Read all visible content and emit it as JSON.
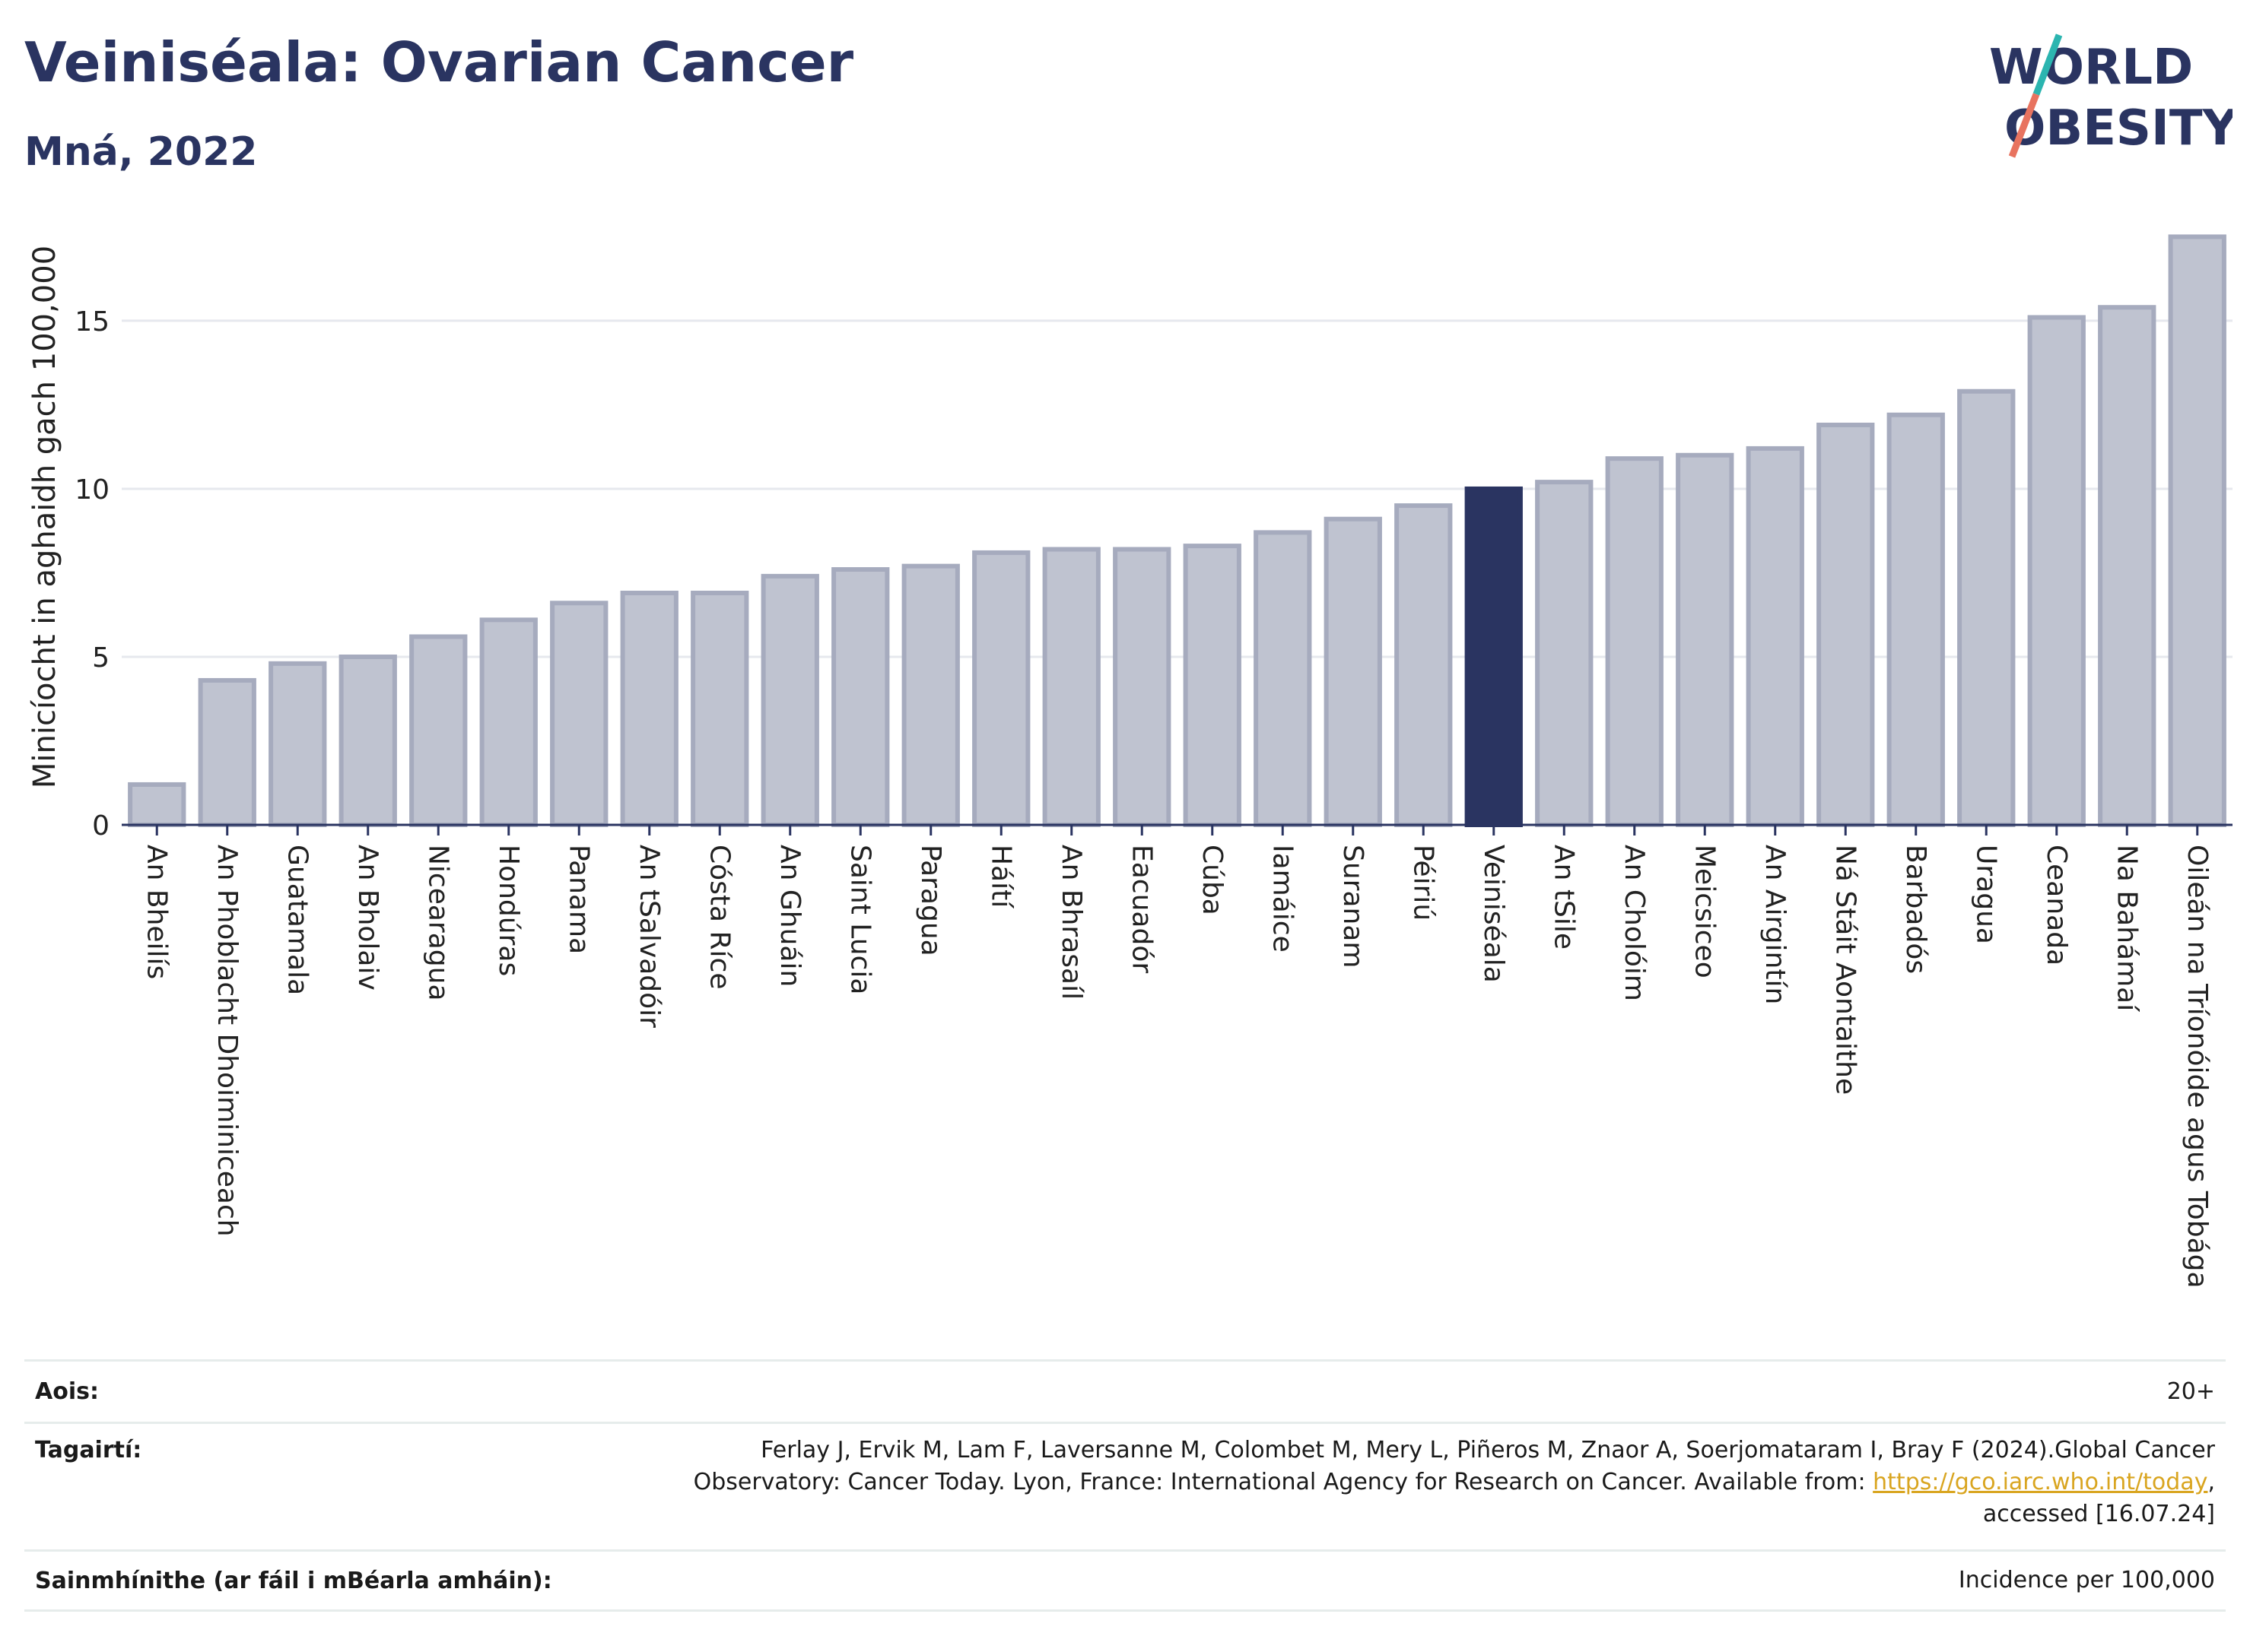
{
  "title": "Veiniséala: Ovarian Cancer",
  "subtitle": "Mná, 2022",
  "logo": {
    "line1": "WORLD",
    "line2": "OBESITY",
    "accent_colors": [
      "#2bb5b0",
      "#e8735f"
    ]
  },
  "colors": {
    "bar": "#bfc3d0",
    "bar_border": "#a6abbe",
    "highlight": "#2a3461",
    "grid": "#e6e8ee",
    "axis": "#2a3461"
  },
  "chart_data": {
    "type": "bar",
    "ylabel": "Minicíocht in aghaidh gach 100,000",
    "ylim": [
      0,
      17.6
    ],
    "yticks": [
      0,
      5,
      10,
      15
    ],
    "highlight": "Veiniséala",
    "categories": [
      "An Bheilís",
      "An Phoblacht Dhoiminiceach",
      "Guatamala",
      "An Bholaiv",
      "Nicearagua",
      "Hondúras",
      "Panama",
      "An tSalvadóir",
      "Cósta Ríce",
      "An Ghuáin",
      "Saint Lucia",
      "Paragua",
      "Háítí",
      "An Bhrasaíl",
      "Eacuadór",
      "Cúba",
      "Iamáice",
      "Suranam",
      "Péiriú",
      "Veiniséala",
      "An tSile",
      "An Cholóim",
      "Meicsiceo",
      "An Airgintín",
      "Ná Stáit Aontaithe",
      "Barbadós",
      "Uragua",
      "Ceanada",
      "Na Bahámaí",
      "Oileán na Tríonóide agus Tobága"
    ],
    "values": [
      1.2,
      4.3,
      4.8,
      5.0,
      5.6,
      6.1,
      6.6,
      6.9,
      6.9,
      7.4,
      7.6,
      7.7,
      8.1,
      8.2,
      8.2,
      8.3,
      8.7,
      9.1,
      9.5,
      10.0,
      10.2,
      10.9,
      11.0,
      11.2,
      11.9,
      12.2,
      12.9,
      15.1,
      15.4,
      17.5
    ]
  },
  "info": {
    "age_label": "Aois:",
    "age_value": "20+",
    "refs_label": "Tagairtí:",
    "refs_line1": "Ferlay J, Ervik M, Lam F, Laversanne M, Colombet M, Mery L, Piñeros M, Znaor A, Soerjomataram I, Bray F (2024).Global Cancer",
    "refs_line2_pre": "Observatory: Cancer Today. Lyon, France: International Agency for Research on Cancer. Available from: ",
    "refs_link": "https://gco.iarc.who.int/today",
    "refs_line2_post": ",",
    "refs_line3": "accessed [16.07.24]",
    "def_label": "Sainmhínithe (ar fáil i mBéarla amháin):",
    "def_value": "Incidence per 100,000"
  }
}
